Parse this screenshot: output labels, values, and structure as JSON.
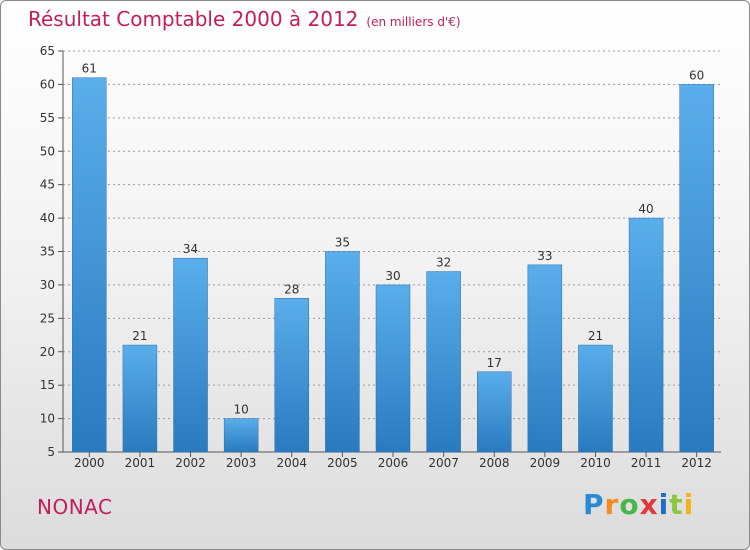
{
  "header": {
    "title": "Résultat Comptable 2000 à 2012",
    "subtitle": "(en milliers d'€)"
  },
  "footer": {
    "place": "NONAC",
    "logo": "Proxiti"
  },
  "colors": {
    "bar_top": "#5aaeea",
    "bar_bottom": "#2a7abf",
    "title": "#c41e5a",
    "grid": "#9a9a9a"
  },
  "chart_data": {
    "type": "bar",
    "title": "Résultat Comptable 2000 à 2012",
    "subtitle": "(en milliers d'€)",
    "xlabel": "",
    "ylabel": "",
    "categories": [
      "2000",
      "2001",
      "2002",
      "2003",
      "2004",
      "2005",
      "2006",
      "2007",
      "2008",
      "2009",
      "2010",
      "2011",
      "2012"
    ],
    "values": [
      61,
      21,
      34,
      10,
      28,
      35,
      30,
      32,
      17,
      33,
      21,
      40,
      60
    ],
    "ylim": [
      5,
      65
    ],
    "yticks": [
      5,
      10,
      15,
      20,
      25,
      30,
      35,
      40,
      45,
      50,
      55,
      60,
      65
    ],
    "grid": "horizontal dashed",
    "data_labels": true
  }
}
